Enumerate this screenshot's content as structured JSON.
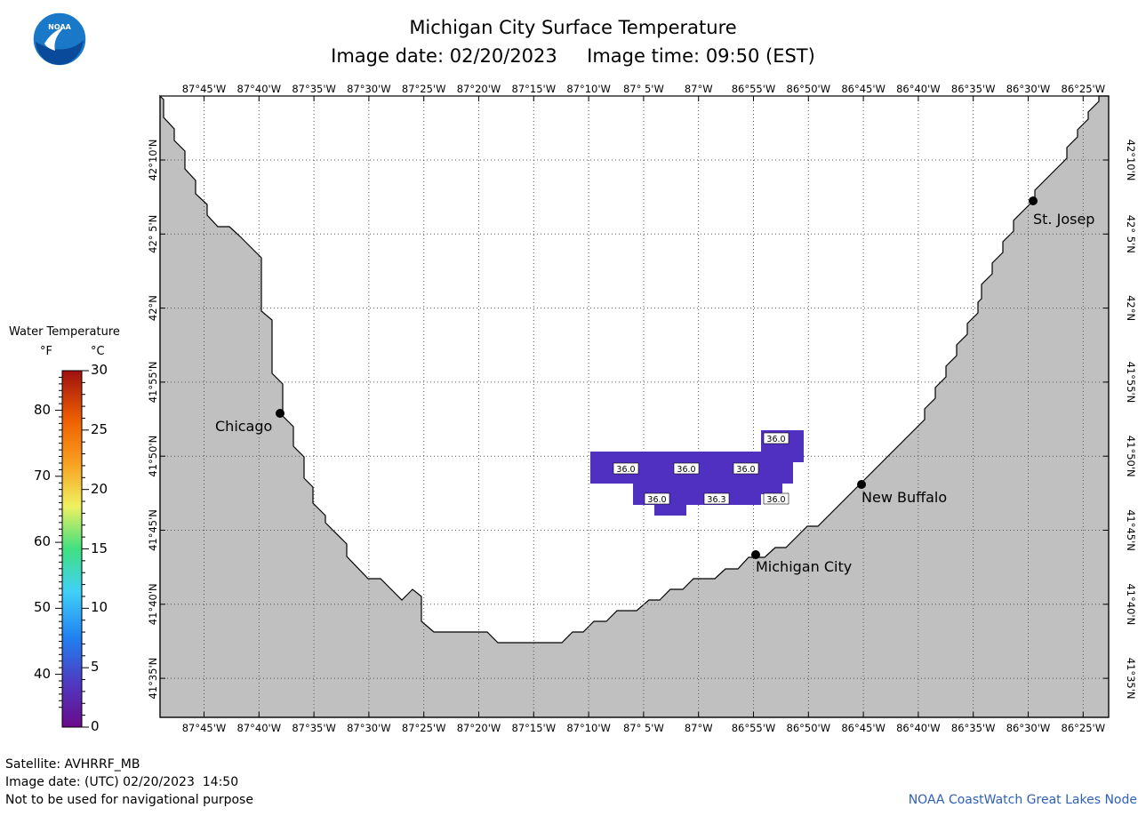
{
  "header": {
    "title": "Michigan City Surface Temperature",
    "subtitle_date_label": "Image date:",
    "subtitle_date": "02/20/2023",
    "subtitle_time_label": "Image time:",
    "subtitle_time": "09:50 (EST)"
  },
  "logo": {
    "icon": "noaa-logo-icon",
    "text": "NOAA"
  },
  "map": {
    "longitude_labels": [
      "87°45'W",
      "87°40'W",
      "87°35'W",
      "87°30'W",
      "87°25'W",
      "87°20'W",
      "87°15'W",
      "87°10'W",
      "87° 5'W",
      "87°W",
      "86°55'W",
      "86°50'W",
      "86°45'W",
      "86°40'W",
      "86°35'W",
      "86°30'W",
      "86°25'W"
    ],
    "latitude_labels": [
      "42°10'N",
      "42° 5'N",
      "42°N",
      "41°55'N",
      "41°50'N",
      "41°45'N",
      "41°40'N",
      "41°35'N"
    ],
    "land_color": "#c0c0c0",
    "water_color": "#ffffff",
    "cities": [
      {
        "name": "Chicago"
      },
      {
        "name": "St. Josep"
      },
      {
        "name": "New Buffalo"
      },
      {
        "name": "Michigan City"
      }
    ],
    "data_labels": [
      "36.0",
      "36.0",
      "36.0",
      "36.0",
      "36.0",
      "36.3",
      "36.0"
    ],
    "data_color": "#5030c0"
  },
  "legend": {
    "title": "Water Temperature",
    "f_unit": "°F",
    "c_unit": "°C",
    "f_ticks": [
      "80",
      "70",
      "60",
      "50",
      "40"
    ],
    "c_ticks": [
      "30",
      "25",
      "20",
      "15",
      "10",
      "5",
      "0"
    ],
    "f_range": [
      32,
      86
    ],
    "c_range": [
      0,
      30
    ]
  },
  "footer": {
    "satellite": "Satellite: AVHRRF_MB",
    "utc_date": "Image date: (UTC) 02/20/2023  14:50",
    "disclaimer": "Not to be used for navigational purpose",
    "credit": "NOAA CoastWatch Great Lakes Node"
  }
}
